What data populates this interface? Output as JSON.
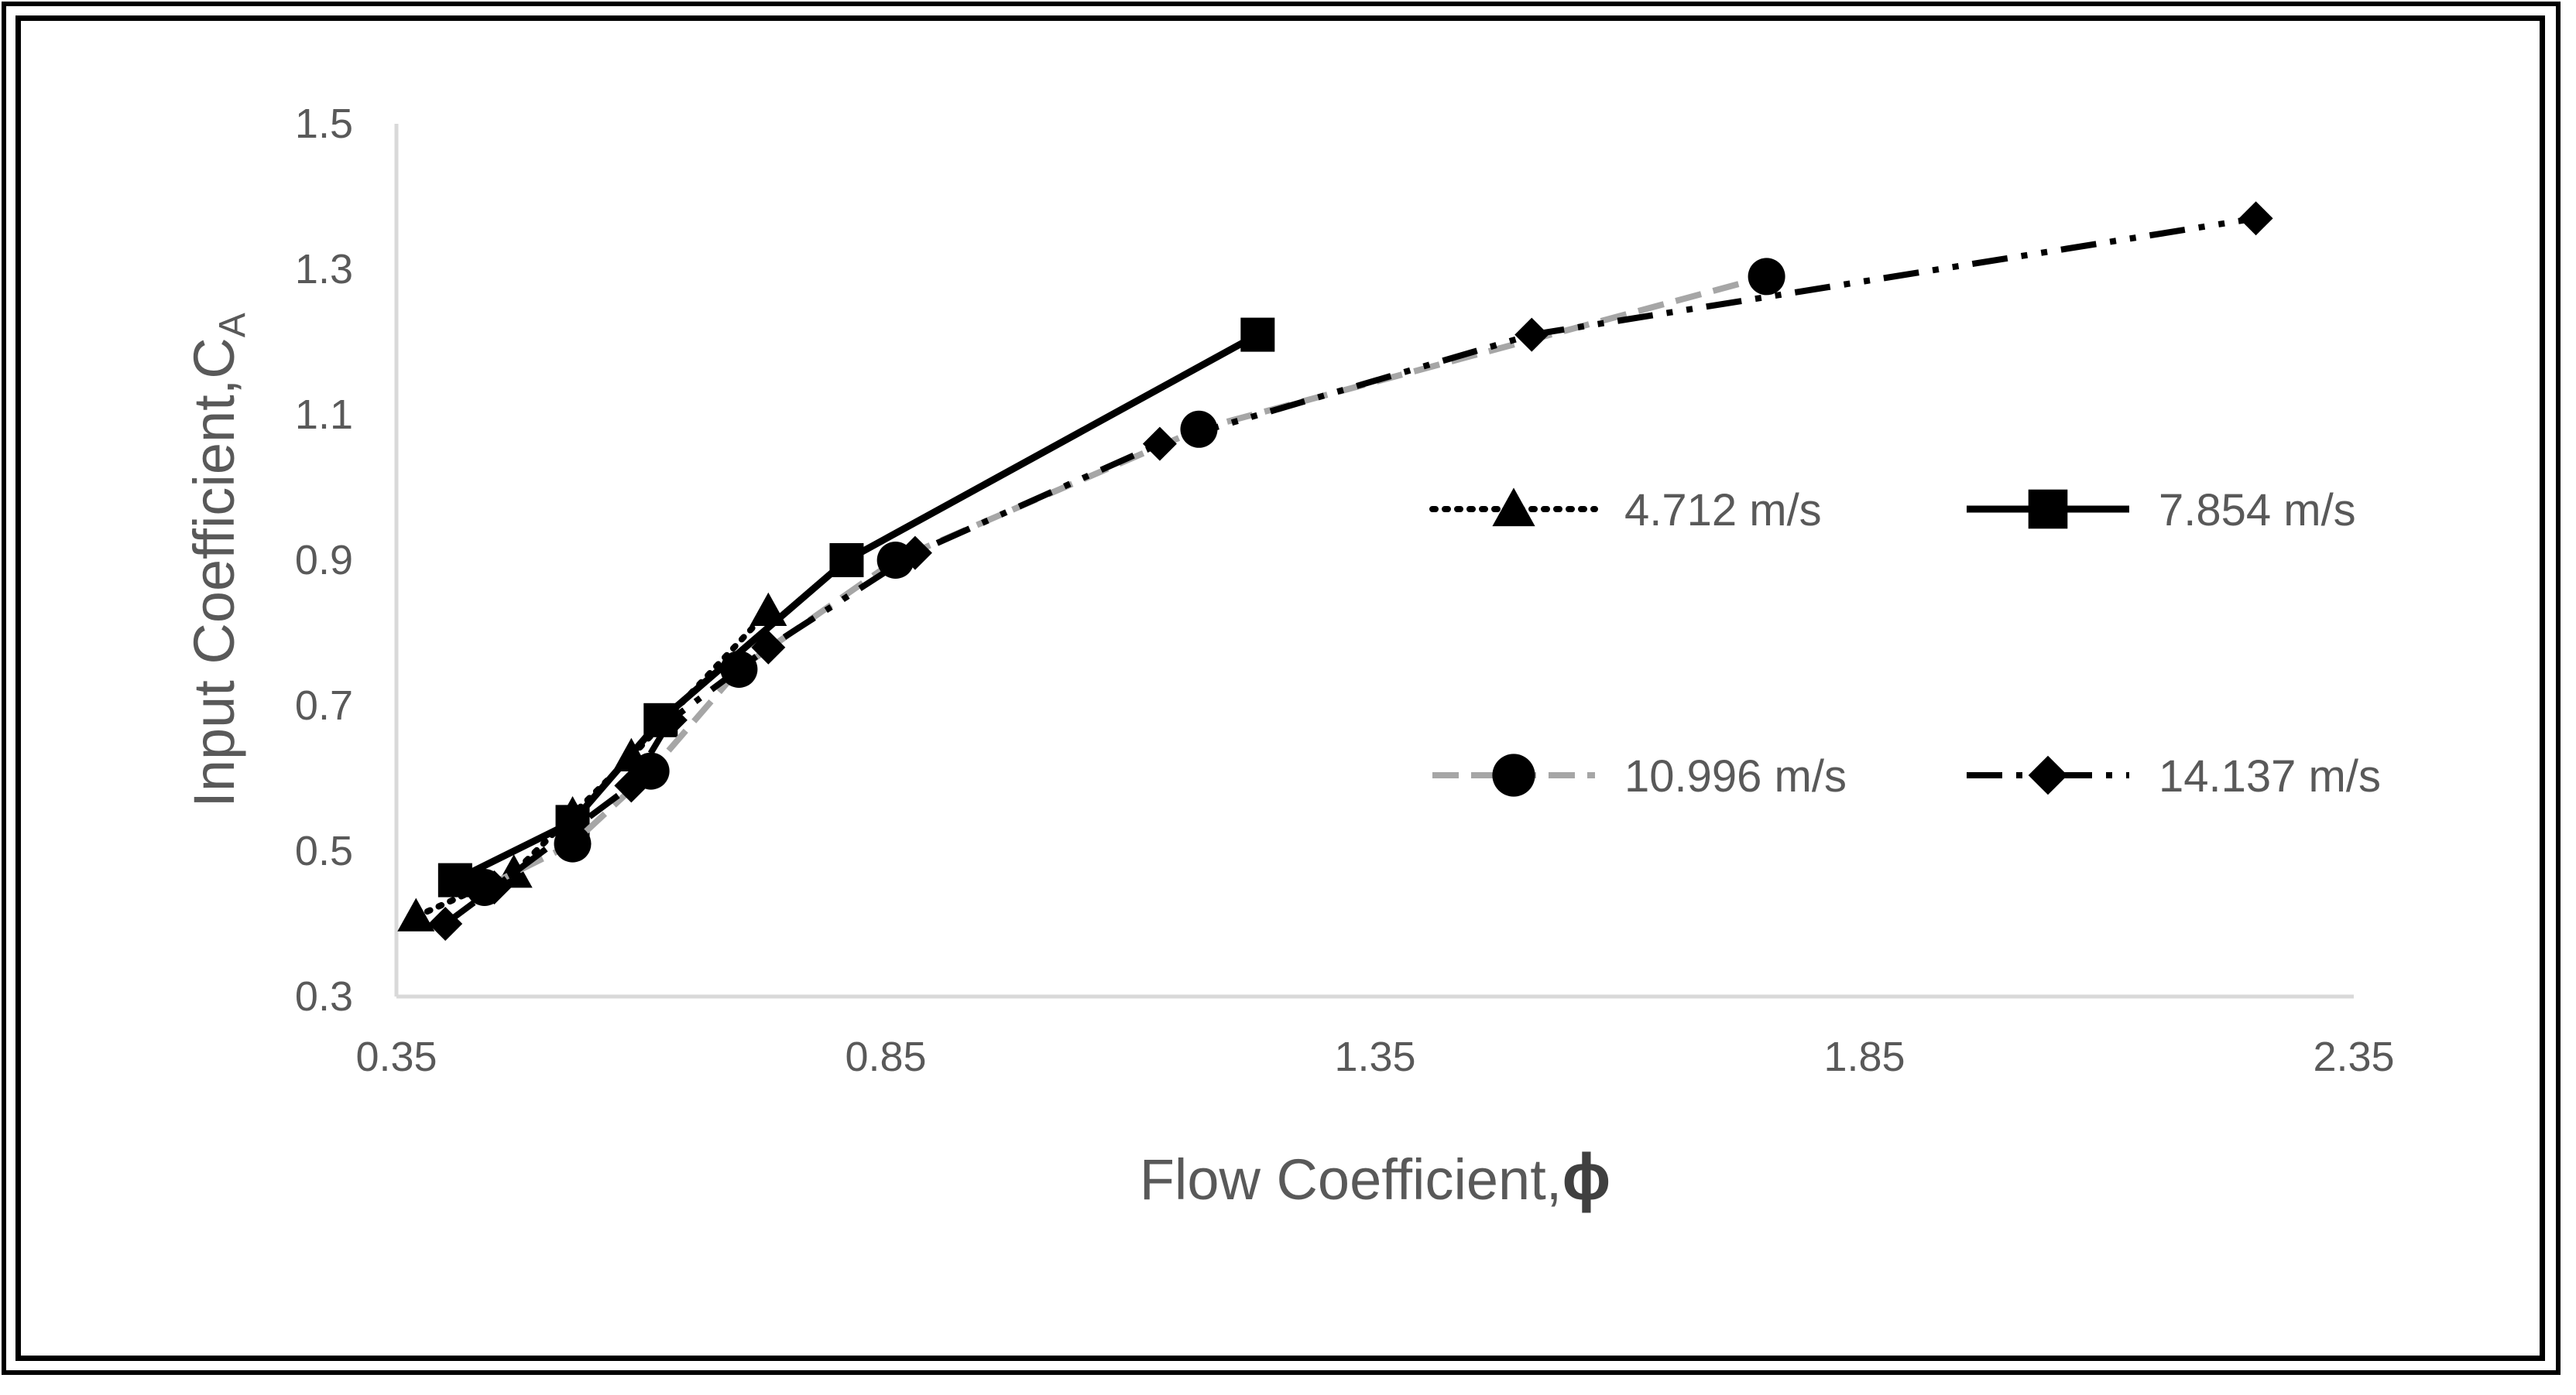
{
  "chart_data": {
    "type": "line",
    "title": "",
    "xlabel": "Flow Coefficient,",
    "xlabel_symbol": "ϕ",
    "ylabel": "Input Coefficient,C",
    "ylabel_sub": "A",
    "xlim": [
      0.35,
      2.35
    ],
    "ylim": [
      0.3,
      1.5
    ],
    "xticks": [
      "0.35",
      "0.85",
      "1.35",
      "1.85",
      "2.35"
    ],
    "yticks": [
      "0.3",
      "0.5",
      "0.7",
      "0.9",
      "1.1",
      "1.3",
      "1.5"
    ],
    "grid": false,
    "legend_position": "right-center",
    "series": [
      {
        "name": "4.712 m/s",
        "marker": "triangle",
        "line_style": "dotted",
        "color": "#000000",
        "x": [
          0.37,
          0.47,
          0.53,
          0.59,
          0.73
        ],
        "y": [
          0.41,
          0.47,
          0.55,
          0.63,
          0.83
        ]
      },
      {
        "name": "7.854 m/s",
        "marker": "square",
        "line_style": "solid",
        "color": "#000000",
        "x": [
          0.41,
          0.53,
          0.62,
          0.81,
          1.23
        ],
        "y": [
          0.46,
          0.54,
          0.68,
          0.9,
          1.21
        ]
      },
      {
        "name": "10.996 m/s",
        "marker": "circle",
        "line_style": "dashed",
        "color": "#a6a6a6",
        "x": [
          0.44,
          0.53,
          0.61,
          0.7,
          0.86,
          1.17,
          1.75
        ],
        "y": [
          0.45,
          0.51,
          0.61,
          0.75,
          0.9,
          1.08,
          1.29
        ]
      },
      {
        "name": "14.137 m/s",
        "marker": "diamond",
        "line_style": "dash-dot-dot",
        "color": "#000000",
        "x": [
          0.4,
          0.45,
          0.59,
          0.63,
          0.73,
          0.88,
          1.13,
          1.51,
          2.25
        ],
        "y": [
          0.4,
          0.45,
          0.59,
          0.68,
          0.78,
          0.91,
          1.06,
          1.21,
          1.37
        ]
      }
    ]
  }
}
